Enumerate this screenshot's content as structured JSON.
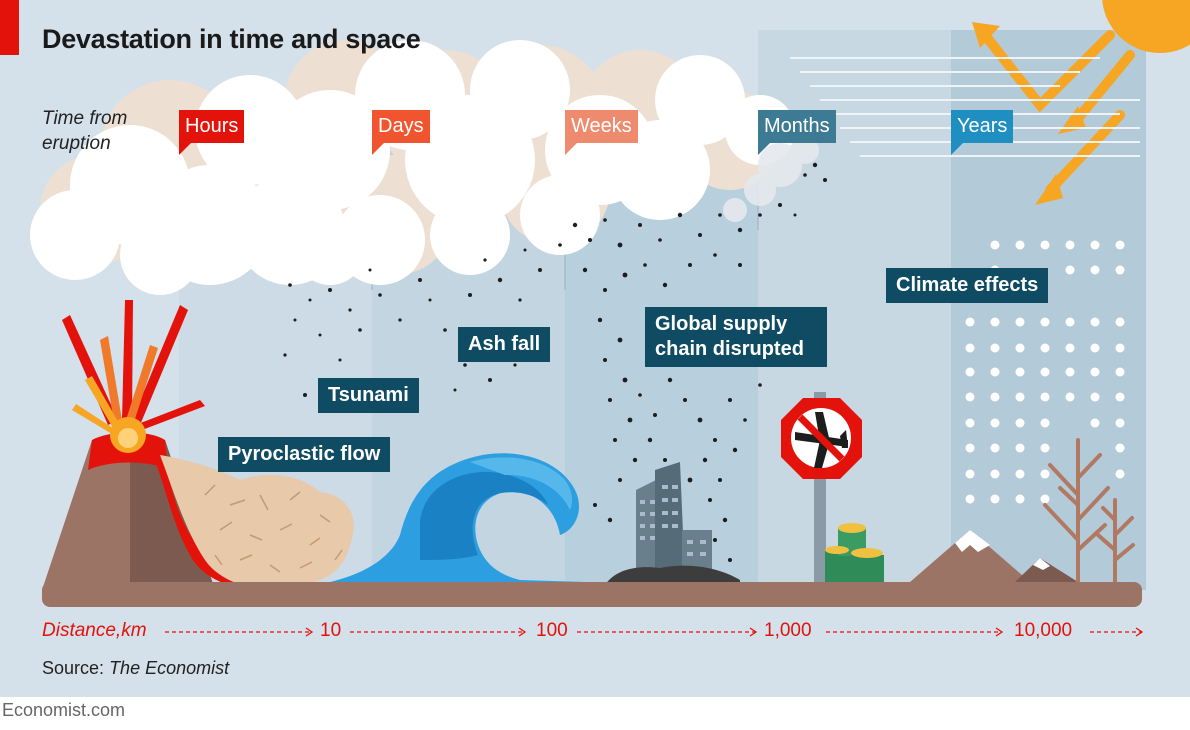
{
  "title": "Devastation in time and space",
  "time_axis": {
    "label": "Time from eruption",
    "markers": [
      {
        "label": "Hours",
        "color": "#e3120b"
      },
      {
        "label": "Days",
        "color": "#f0552f"
      },
      {
        "label": "Weeks",
        "color": "#ee8b6e"
      },
      {
        "label": "Months",
        "color": "#3d7a94"
      },
      {
        "label": "Years",
        "color": "#1f8fc2"
      }
    ]
  },
  "effects": {
    "tsunami": "Tsunami",
    "pyroclastic_flow": "Pyroclastic flow",
    "ash_fall": "Ash fall",
    "supply_chain": "Global supply chain disrupted",
    "climate": "Climate effects"
  },
  "distance_axis": {
    "label": "Distance,km",
    "ticks": [
      "10",
      "100",
      "1,000",
      "10,000"
    ]
  },
  "source": {
    "prefix": "Source:",
    "name": "The Economist"
  },
  "brand": "Economist.com",
  "colors": {
    "accent": "#e3120b",
    "label_box": "#0f4c64",
    "ground": "#9b7466",
    "wave": "#2d9fe0"
  }
}
